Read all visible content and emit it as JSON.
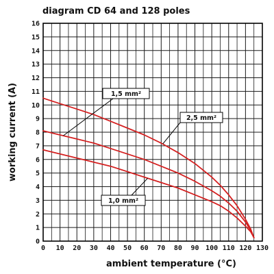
{
  "chart_data": {
    "type": "line",
    "title": "diagram CD 64 and 128 poles",
    "xlabel": "ambient temperature (°C)",
    "ylabel": "working current (A)",
    "xlim": [
      0,
      130
    ],
    "ylim": [
      0,
      16
    ],
    "x_ticks": [
      "0",
      "10",
      "20",
      "30",
      "40",
      "50",
      "60",
      "70",
      "80",
      "90",
      "100",
      "110",
      "120",
      "130"
    ],
    "y_ticks": [
      "0",
      "1",
      "2",
      "3",
      "4",
      "5",
      "6",
      "7",
      "8",
      "9",
      "10",
      "11",
      "12",
      "13",
      "14",
      "15",
      "16"
    ],
    "grid": true,
    "series": [
      {
        "name": "2,5 mm²",
        "color": "#d42020",
        "x": [
          0,
          10,
          20,
          30,
          40,
          50,
          60,
          70,
          80,
          90,
          100,
          105,
          110,
          115,
          120,
          123,
          125
        ],
        "y": [
          10.5,
          10.1,
          9.7,
          9.3,
          8.8,
          8.3,
          7.8,
          7.2,
          6.5,
          5.7,
          4.7,
          4.1,
          3.4,
          2.6,
          1.6,
          0.9,
          0.25
        ]
      },
      {
        "name": "1,5 mm²",
        "color": "#d42020",
        "x": [
          0,
          10,
          20,
          30,
          40,
          50,
          60,
          70,
          80,
          90,
          100,
          105,
          110,
          115,
          120,
          123,
          125
        ],
        "y": [
          8.1,
          7.8,
          7.5,
          7.2,
          6.8,
          6.4,
          6.0,
          5.5,
          5.0,
          4.4,
          3.7,
          3.3,
          2.8,
          2.2,
          1.4,
          0.8,
          0.25
        ]
      },
      {
        "name": "1,0 mm²",
        "color": "#d42020",
        "x": [
          0,
          10,
          20,
          30,
          40,
          50,
          60,
          70,
          80,
          90,
          100,
          105,
          110,
          115,
          120,
          123,
          125
        ],
        "y": [
          6.7,
          6.4,
          6.1,
          5.8,
          5.5,
          5.1,
          4.7,
          4.3,
          3.9,
          3.4,
          2.9,
          2.6,
          2.2,
          1.7,
          1.1,
          0.7,
          0.25
        ]
      }
    ],
    "callouts": [
      {
        "label": "1,5 mm²",
        "series": "1,5 mm²"
      },
      {
        "label": "2,5 mm²",
        "series": "2,5 mm²"
      },
      {
        "label": "1,0 mm²",
        "series": "1,0 mm²"
      }
    ]
  }
}
